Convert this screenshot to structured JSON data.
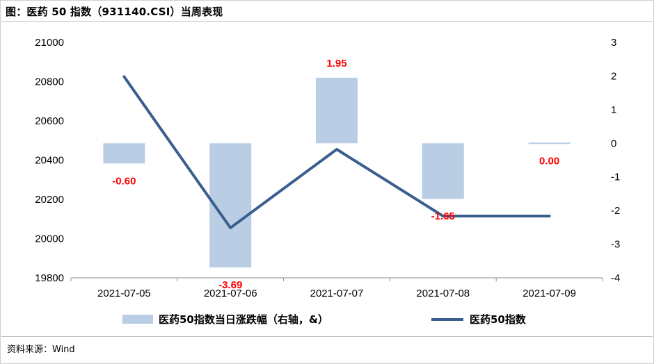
{
  "title": "图：医药 50 指数（931140.CSI）当周表现",
  "source": "资料来源：Wind",
  "colors": {
    "bar": "#b9cde5",
    "line": "#3a5f8f",
    "data_label": "#ff0000"
  },
  "chart_data": {
    "type": "bar+line",
    "categories": [
      "2021-07-05",
      "2021-07-06",
      "2021-07-07",
      "2021-07-08",
      "2021-07-09"
    ],
    "left_axis": {
      "ylim": [
        19800,
        21000
      ],
      "ticks": [
        "21000",
        "20800",
        "20600",
        "20400",
        "20200",
        "20000",
        "19800"
      ]
    },
    "right_axis": {
      "ylim": [
        -4,
        3
      ],
      "ticks": [
        "3",
        "2",
        "1",
        "0",
        "-1",
        "-2",
        "-3",
        "-4"
      ]
    },
    "series": [
      {
        "name": "医药50指数当日涨跌幅（右轴，&）",
        "type": "bar",
        "axis": "right",
        "values": [
          -0.6,
          -3.69,
          1.95,
          -1.65,
          0.0
        ],
        "labels": [
          "-0.60",
          "-3.69",
          "1.95",
          "-1.65",
          "0.00"
        ]
      },
      {
        "name": "医药50指数",
        "type": "line",
        "axis": "left",
        "values": [
          20825,
          20055,
          20455,
          20115,
          20115
        ]
      }
    ],
    "legend_position": "bottom",
    "grid": false
  }
}
